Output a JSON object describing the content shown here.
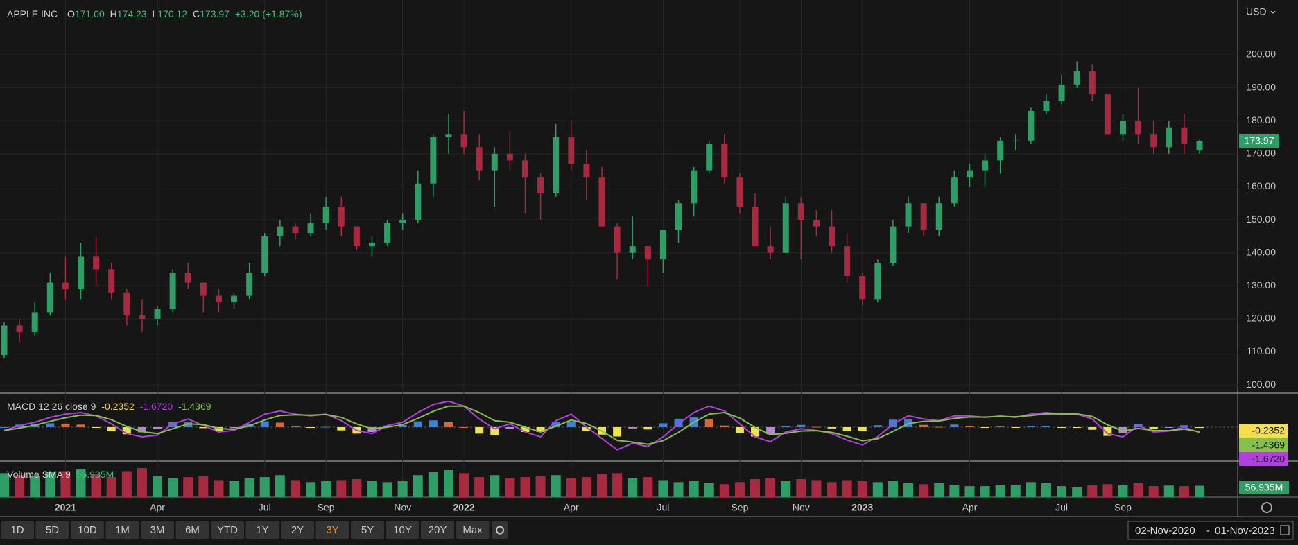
{
  "header": {
    "name": "APPLE INC",
    "o_label": "O",
    "open": "171.00",
    "h_label": "H",
    "high": "174.23",
    "l_label": "L",
    "low": "170.12",
    "c_label": "C",
    "close": "173.97",
    "change": "+3.20",
    "change_pct": "(+1.87%)"
  },
  "currency": "USD",
  "chart_data": {
    "type": "candlestick",
    "categories": [
      null,
      null,
      null,
      null,
      "2021",
      null,
      null,
      null,
      null,
      null,
      "Apr",
      null,
      null,
      null,
      null,
      null,
      null,
      "Jul",
      null,
      null,
      null,
      "Sep",
      null,
      null,
      null,
      null,
      "Nov",
      null,
      null,
      null,
      "2022",
      null,
      null,
      null,
      null,
      null,
      null,
      "Apr",
      null,
      null,
      null,
      null,
      null,
      "Jul",
      null,
      null,
      null,
      null,
      "Sep",
      null,
      null,
      null,
      "Nov",
      null,
      null,
      null,
      "2023",
      null,
      null,
      null,
      null,
      null,
      null,
      "Apr",
      null,
      null,
      null,
      null,
      null,
      "Jul",
      null,
      null,
      null,
      "Sep",
      null,
      null,
      null,
      null,
      null
    ],
    "open": [
      109,
      118,
      116,
      122,
      131,
      129,
      139,
      135,
      128,
      121,
      120,
      123,
      134,
      131,
      127,
      125,
      127,
      134,
      145,
      148,
      146,
      149,
      154,
      148,
      142,
      143,
      149,
      150,
      161,
      175,
      176,
      172,
      165,
      170,
      168,
      163,
      158,
      175,
      167,
      163,
      148,
      140,
      142,
      138,
      147,
      155,
      165,
      173,
      163,
      154,
      142,
      140,
      155,
      150,
      148,
      142,
      133,
      126,
      137,
      148,
      155,
      147,
      155,
      163,
      165,
      168,
      174,
      174,
      183,
      186,
      191,
      195,
      188,
      176,
      180,
      176,
      172,
      178,
      171
    ],
    "high": [
      119,
      120,
      125,
      134,
      139,
      143,
      145,
      137,
      129,
      126,
      124,
      135,
      137,
      131,
      129,
      128,
      137,
      146,
      150,
      149,
      152,
      157,
      157,
      148,
      145,
      150,
      152,
      165,
      176,
      182,
      183,
      176,
      172,
      177,
      170,
      164,
      179,
      180,
      171,
      166,
      149,
      151,
      142,
      147,
      156,
      166,
      174,
      176,
      164,
      158,
      148,
      157,
      157,
      153,
      153,
      146,
      134,
      138,
      150,
      157,
      155,
      157,
      165,
      167,
      170,
      175,
      176,
      184,
      188,
      194,
      198,
      197,
      188,
      182,
      190,
      180,
      180,
      182,
      174.23
    ],
    "low": [
      108,
      113,
      115,
      121,
      126,
      126,
      130,
      126,
      118,
      116,
      118,
      122,
      129,
      122,
      122,
      123,
      126,
      133,
      142,
      144,
      145,
      147,
      145,
      141,
      139,
      142,
      147,
      149,
      157,
      170,
      170,
      162,
      154,
      165,
      152,
      150,
      157,
      165,
      156,
      148,
      132,
      138,
      130,
      134,
      143,
      151,
      164,
      161,
      152,
      142,
      138,
      140,
      138,
      145,
      140,
      131,
      124,
      125,
      136,
      146,
      145,
      145,
      154,
      160,
      160,
      164,
      171,
      173,
      182,
      185,
      190,
      186,
      176,
      174,
      173,
      170,
      170,
      170,
      170.12
    ],
    "close": [
      118,
      116,
      122,
      131,
      129,
      139,
      135,
      128,
      121,
      120,
      123,
      134,
      131,
      127,
      125,
      127,
      134,
      145,
      148,
      146,
      149,
      154,
      148,
      142,
      143,
      149,
      150,
      161,
      175,
      176,
      172,
      165,
      170,
      168,
      163,
      158,
      175,
      167,
      163,
      148,
      140,
      142,
      138,
      147,
      155,
      165,
      173,
      163,
      154,
      142,
      140,
      155,
      150,
      148,
      142,
      133,
      126,
      137,
      148,
      155,
      147,
      155,
      163,
      165,
      168,
      174,
      174,
      183,
      186,
      191,
      195,
      188,
      176,
      180,
      176,
      172,
      178,
      173,
      173.97
    ],
    "up_color": "#2f9e66",
    "down_color": "#a82a40",
    "ylim": [
      97.5,
      216.6
    ],
    "yticks": [
      {
        "value": 100,
        "label": "100.00"
      },
      {
        "value": 110,
        "label": "110.00"
      },
      {
        "value": 120,
        "label": "120.00"
      },
      {
        "value": 130,
        "label": "130.00"
      },
      {
        "value": 140,
        "label": "140.00"
      },
      {
        "value": 150,
        "label": "150.00"
      },
      {
        "value": 160,
        "label": "160.00"
      },
      {
        "value": 170,
        "label": "170.00"
      },
      {
        "value": 180,
        "label": "180.00"
      },
      {
        "value": 190,
        "label": "190.00"
      },
      {
        "value": 200,
        "label": "200.00"
      }
    ],
    "grid": true,
    "macd": {
      "title": "MACD 12 26 close 9",
      "ylim": [
        -10.5,
        10.5
      ],
      "macd_values": [
        -1,
        0.5,
        1.5,
        3,
        4,
        4.5,
        3.5,
        1,
        -2,
        -3,
        -2.5,
        1,
        2.5,
        0.5,
        -1.5,
        -1,
        1.5,
        4,
        5,
        4,
        3.5,
        4,
        2,
        -1,
        -2,
        0.5,
        1.5,
        4.5,
        7,
        8,
        6.5,
        2.5,
        -0.5,
        1,
        -1.5,
        -3,
        2,
        4,
        0,
        -3.5,
        -7,
        -5,
        -6,
        -3,
        1,
        4.5,
        6.5,
        5,
        1,
        -3,
        -4.5,
        -1.5,
        -0.5,
        -1,
        -2,
        -4,
        -5.5,
        -3,
        1,
        3.5,
        2.5,
        2,
        3.5,
        3.5,
        3,
        3.5,
        3,
        4,
        4.5,
        4,
        4,
        2.5,
        -2,
        -3,
        0.5,
        -1.5,
        -1.2,
        0,
        -1.672
      ],
      "signal_values": [
        -1,
        -0.3,
        0.6,
        1.8,
        2.9,
        3.7,
        3.6,
        2.3,
        0.2,
        -1.4,
        -2,
        -0.5,
        1,
        0.8,
        -0.4,
        -0.7,
        0.4,
        2.2,
        3.6,
        3.8,
        3.7,
        3.9,
        3,
        1,
        -0.5,
        0,
        0.8,
        2.7,
        4.9,
        6.5,
        6.5,
        4.5,
        2,
        1.5,
        0,
        -1.5,
        0.3,
        2.2,
        1.1,
        -1.2,
        -4.1,
        -4.6,
        -5.3,
        -4.2,
        -1.6,
        1.5,
        4,
        4.5,
        2.8,
        -0.1,
        -2.3,
        -1.9,
        -1.2,
        -1.1,
        -1.6,
        -2.8,
        -4.2,
        -3.6,
        -1.3,
        1.1,
        1.8,
        1.9,
        2.7,
        3.1,
        3.1,
        3.3,
        3.2,
        3.6,
        4.1,
        4.1,
        4.1,
        3.3,
        0.7,
        -1.2,
        -0.4,
        -1,
        -1.1,
        -0.6,
        -1.4369
      ],
      "histogram_values": [
        0,
        0.8,
        0.9,
        1.2,
        1.1,
        0.8,
        -0.1,
        -1.3,
        -2.2,
        -1.6,
        -0.5,
        1.5,
        1.5,
        -0.3,
        -1.1,
        -0.3,
        1.1,
        1.8,
        1.4,
        0.2,
        -0.2,
        0.1,
        -1,
        -2,
        -1.5,
        0.5,
        0.7,
        1.8,
        2.1,
        1.5,
        0,
        -2,
        -2.5,
        -0.5,
        -1.5,
        -1.5,
        1.7,
        1.8,
        -1.1,
        -2.3,
        -2.9,
        -0.4,
        -0.7,
        1.2,
        2.6,
        3,
        2.5,
        0.5,
        -1.8,
        -2.9,
        -2.2,
        0.4,
        0.7,
        0.1,
        -0.4,
        -1.2,
        -1.3,
        0.6,
        2.3,
        2.4,
        0.7,
        0.1,
        0.8,
        0.4,
        -0.1,
        0.2,
        -0.2,
        0.4,
        0.4,
        -0.1,
        -0.1,
        -0.8,
        -2.7,
        -1.8,
        0.9,
        -0.5,
        -0.1,
        0.6,
        -0.2352
      ],
      "macd_color": "#b23fe0",
      "signal_color": "#86c04a",
      "hist_colors": [
        "#3d82d8",
        "#e2662c",
        "#ece34e",
        "#b58ad2"
      ],
      "histogram_label": "-0.2352",
      "macd_label": "-1.6720",
      "signal_label": "-1.4369"
    },
    "volume": {
      "title": "Volume SMA 9",
      "sma_label": "56.935M",
      "ylim": [
        0,
        180
      ],
      "values": [
        120,
        110,
        105,
        125,
        130,
        140,
        115,
        100,
        130,
        145,
        105,
        95,
        100,
        105,
        85,
        80,
        95,
        100,
        110,
        85,
        75,
        80,
        85,
        90,
        80,
        75,
        80,
        110,
        125,
        135,
        120,
        100,
        110,
        95,
        100,
        105,
        110,
        95,
        100,
        115,
        120,
        95,
        100,
        85,
        75,
        80,
        70,
        65,
        75,
        90,
        95,
        80,
        90,
        85,
        75,
        85,
        80,
        75,
        80,
        70,
        65,
        70,
        60,
        55,
        55,
        60,
        60,
        75,
        70,
        55,
        50,
        60,
        65,
        60,
        70,
        55,
        58,
        55,
        57
      ]
    }
  },
  "toolbar": {
    "buttons": [
      "1D",
      "5D",
      "10D",
      "1M",
      "3M",
      "6M",
      "YTD",
      "1Y",
      "2Y",
      "3Y",
      "5Y",
      "10Y",
      "20Y",
      "Max"
    ],
    "active": "3Y",
    "date_from": "02-Nov-2020",
    "date_sep": "-",
    "date_to": "01-Nov-2023"
  }
}
